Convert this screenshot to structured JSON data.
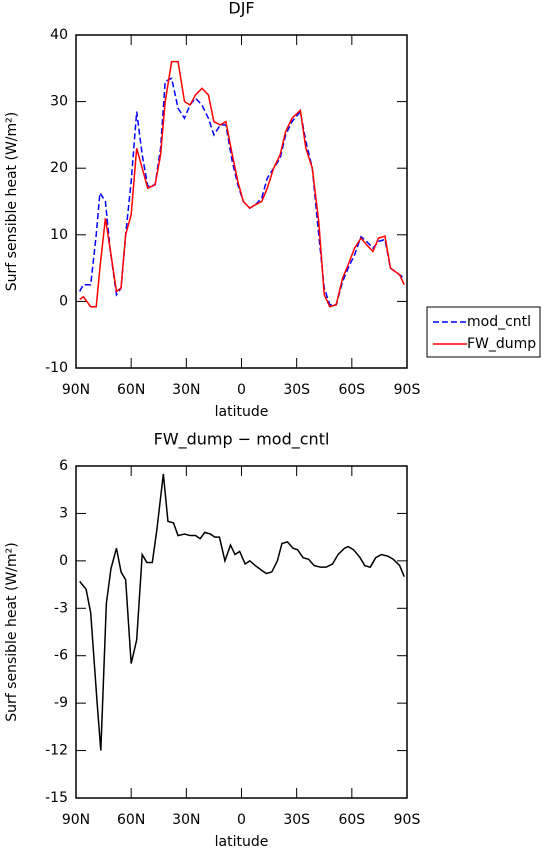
{
  "chart_data": [
    {
      "type": "line",
      "title": "DJF",
      "xlabel": "latitude",
      "ylabel": "Surf sensible heat (W/m²)",
      "x": [
        88,
        86,
        82,
        79,
        77,
        74,
        71.5,
        68,
        65.5,
        63,
        60,
        57,
        54,
        51,
        47,
        44,
        41.5,
        38,
        34.5,
        31,
        28,
        25,
        21.5,
        18,
        15,
        11.5,
        8.5,
        5,
        2,
        -1,
        -4.5,
        -7.5,
        -11,
        -14,
        -17.5,
        -21,
        -24,
        -27.5,
        -32,
        -35,
        -38.5,
        -42,
        -45,
        -48,
        -51.5,
        -55,
        -58,
        -61.5,
        -65,
        -68,
        -71.5,
        -74.5,
        -78,
        -81,
        -86,
        -88.5
      ],
      "series": [
        {
          "name": "mod_cntl",
          "color": "#0000ff",
          "linestyle": "dashed",
          "values": [
            1.5,
            2.5,
            2.5,
            10,
            16.3,
            15,
            8,
            1,
            2,
            10,
            18,
            28.5,
            22,
            17.3,
            17.5,
            23,
            33,
            33.5,
            29,
            27.5,
            29.5,
            30.5,
            29.5,
            27.5,
            25,
            26.5,
            26.5,
            21,
            17.5,
            15,
            14,
            14.5,
            15.5,
            18.5,
            20,
            21.5,
            25,
            27,
            28.5,
            24,
            20,
            10,
            2,
            -0.5,
            -0.5,
            3,
            5,
            7,
            9.7,
            9,
            8,
            9,
            9.3,
            5,
            4,
            3.5
          ]
        },
        {
          "name": "FW_dump",
          "color": "#ff0000",
          "linestyle": "solid",
          "values": [
            0.3,
            0.7,
            -0.8,
            -0.8,
            5,
            12.5,
            8,
            1.5,
            2,
            10,
            13,
            23,
            20,
            17,
            17.5,
            22,
            30,
            36,
            36,
            30,
            29.5,
            31,
            32,
            31,
            27,
            26.5,
            27,
            22,
            18,
            15,
            14,
            14.5,
            15,
            17,
            20,
            22,
            25.5,
            27.5,
            28.7,
            23,
            20,
            12,
            1,
            -0.8,
            -0.5,
            3.5,
            5.5,
            8,
            9.5,
            8.5,
            7.5,
            9.5,
            9.8,
            5,
            4,
            2.5
          ]
        }
      ],
      "xlim": [
        90,
        -90
      ],
      "xticks": [
        {
          "value": 90,
          "label": "90N"
        },
        {
          "value": 60,
          "label": "60N"
        },
        {
          "value": 30,
          "label": "30N"
        },
        0,
        {
          "value": -30,
          "label": "30S"
        },
        {
          "value": -60,
          "label": "60S"
        },
        {
          "value": -90,
          "label": "90S"
        }
      ],
      "ylim": [
        -10,
        40
      ],
      "yticks": [
        -10,
        0,
        10,
        20,
        30,
        40
      ],
      "legend": "right"
    },
    {
      "type": "line",
      "title": "FW_dump − mod_cntl",
      "xlabel": "latitude",
      "ylabel": "Surf sensible heat (W/m²)",
      "x": [
        88,
        84.5,
        82,
        78.5,
        76.5,
        73.5,
        71,
        68,
        65.5,
        63,
        60,
        57,
        54,
        51.5,
        48.5,
        46,
        42.5,
        40,
        37,
        34.5,
        31,
        28,
        25,
        22.5,
        20,
        17,
        14.5,
        12,
        9,
        6,
        3.5,
        1,
        -2,
        -4.5,
        -7.5,
        -11,
        -13.5,
        -16.5,
        -19.5,
        -22,
        -25,
        -28,
        -30.5,
        -33.5,
        -36.5,
        -39.5,
        -43,
        -46,
        -49.5,
        -52.5,
        -56,
        -58,
        -61,
        -64.5,
        -67,
        -70,
        -73,
        -76,
        -79.5,
        -82.5,
        -86,
        -88.5
      ],
      "values": [
        -1.3,
        -1.8,
        -3.3,
        -9,
        -12,
        -2.7,
        -0.5,
        0.8,
        -0.7,
        -1.2,
        -6.5,
        -5,
        0.4,
        -0.1,
        -0.1,
        2,
        5.5,
        2.5,
        2.4,
        1.6,
        1.7,
        1.6,
        1.6,
        1.4,
        1.8,
        1.7,
        1.5,
        1.5,
        0,
        1,
        0.4,
        0.6,
        -0.2,
        0,
        -0.3,
        -0.6,
        -0.8,
        -0.7,
        0,
        1.1,
        1.2,
        0.8,
        0.7,
        0.2,
        0.1,
        -0.3,
        -0.4,
        -0.4,
        -0.2,
        0.4,
        0.8,
        0.9,
        0.7,
        0.2,
        -0.3,
        -0.4,
        0.2,
        0.4,
        0.3,
        0.1,
        -0.3,
        -1
      ],
      "color": "#000000",
      "xlim": [
        90,
        -90
      ],
      "xticks": [
        {
          "value": 90,
          "label": "90N"
        },
        {
          "value": 60,
          "label": "60N"
        },
        {
          "value": 30,
          "label": "30N"
        },
        0,
        {
          "value": -30,
          "label": "30S"
        },
        {
          "value": -60,
          "label": "60S"
        },
        {
          "value": -90,
          "label": "90S"
        }
      ],
      "ylim": [
        -15,
        6
      ],
      "yticks": [
        -15,
        -12,
        -9,
        -6,
        -3,
        0,
        3,
        6
      ]
    }
  ]
}
